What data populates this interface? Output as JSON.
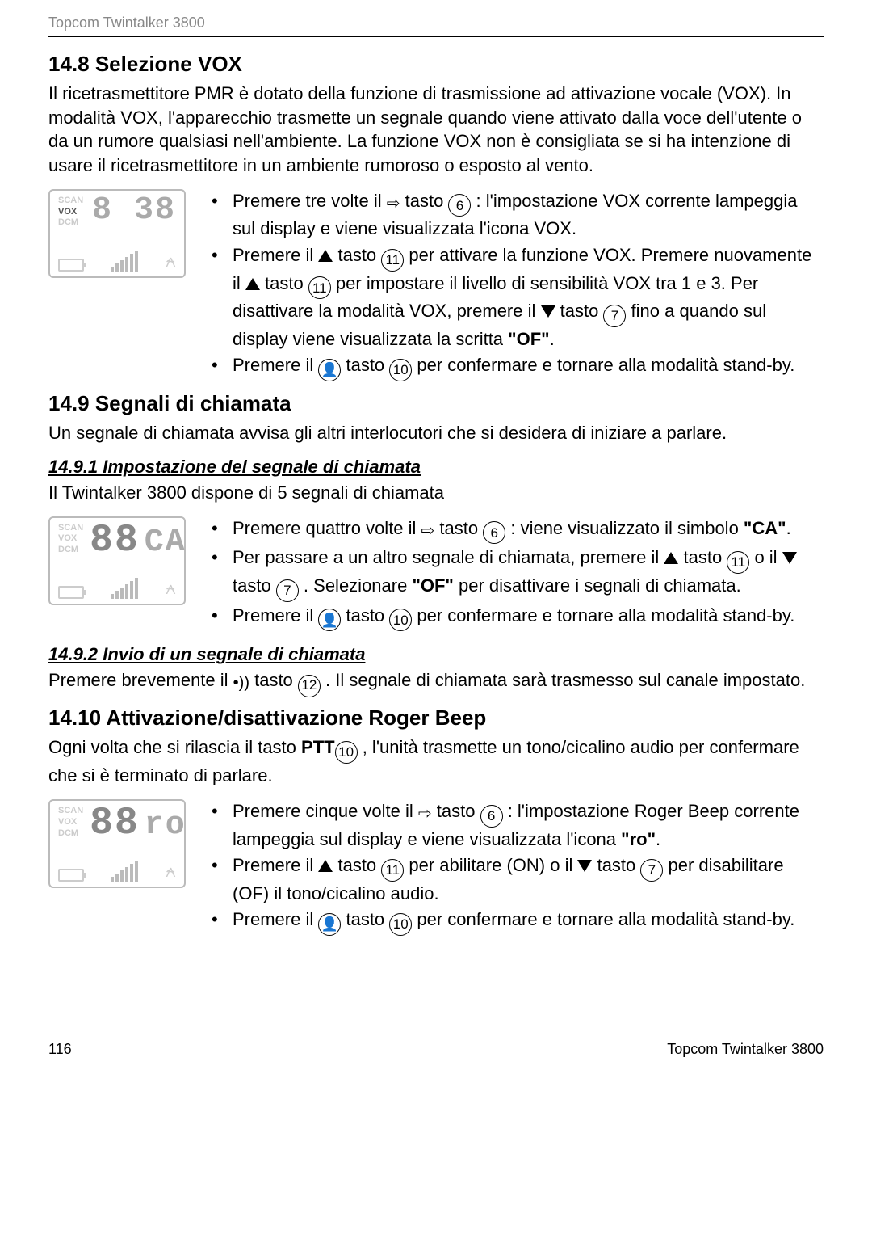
{
  "header": {
    "product": "Topcom Twintalker 3800"
  },
  "sections": {
    "vox": {
      "heading": "14.8   Selezione VOX",
      "intro": "Il ricetrasmettitore PMR è dotato della funzione di trasmissione ad attivazione vocale (VOX). In modalità VOX, l'apparecchio trasmette un segnale quando viene attivato dalla voce dell'utente o da un rumore qualsiasi nell'ambiente. La funzione VOX non è consigliata se si ha intenzione di usare il ricetrasmettitore in un ambiente rumoroso o esposto al vento.",
      "lcd": {
        "labels": [
          "SCAN",
          "VOX",
          "DCM"
        ],
        "active_label_index": 1,
        "digits_small": "8",
        "digits_right": "38"
      },
      "bullets": {
        "b1a": "Premere tre volte il ",
        "b1b": " tasto ",
        "b1c": " : l'impostazione VOX corrente lampeggia sul display e viene visualizzata l'icona VOX.",
        "b2a": "Premere il ",
        "b2b": " tasto  ",
        "b2c": " per attivare la funzione VOX. Premere nuovamente il ",
        "b2d": " tasto  ",
        "b2e": " per impostare il livello di sensibilità VOX tra 1 e 3. Per disattivare la modalità VOX, premere il ",
        "b2f": " tasto ",
        "b2g": " fino a quando sul display viene visualizzata la scritta ",
        "b2h": "\"OF\"",
        "b2i": ".",
        "b3a": "Premere il ",
        "b3b": " tasto ",
        "b3c": " per confermare e tornare alla modalità stand-by."
      }
    },
    "call": {
      "heading": "14.9   Segnali di chiamata",
      "intro": "Un segnale di chiamata avvisa gli altri interlocutori che si desidera di iniziare a parlare.",
      "sub1": {
        "heading": "14.9.1 Impostazione del segnale di chiamata",
        "intro": "Il Twintalker 3800 dispone di 5 segnali di chiamata",
        "lcd": {
          "labels": [
            "SCAN",
            "VOX",
            "DCM"
          ],
          "digits_big": "88",
          "digits_right": "CA"
        },
        "bullets": {
          "b1a": "Premere quattro volte il ",
          "b1b": " tasto ",
          "b1c": " : viene visualizzato il simbolo ",
          "b1d": "\"CA\"",
          "b1e": ".",
          "b2a": "Per passare a un altro segnale di chiamata, premere il ",
          "b2b": " tasto ",
          "b2c": "  o il ",
          "b2d": " tasto ",
          "b2e": " . Selezionare ",
          "b2f": "\"OF\"",
          "b2g": " per disattivare i segnali di chiamata.",
          "b3a": "Premere il ",
          "b3b": " tasto ",
          "b3c": " per confermare e tornare alla modalità stand-by."
        }
      },
      "sub2": {
        "heading": "14.9.2 Invio di un segnale di chiamata",
        "p_a": "Premere brevemente il ",
        "p_b": " tasto ",
        "p_c": "  . Il segnale di chiamata sarà trasmesso sul canale impostato."
      }
    },
    "roger": {
      "heading": "14.10 Attivazione/disattivazione Roger Beep",
      "intro_a": "Ogni volta che si rilascia il tasto ",
      "intro_ptt": "PTT",
      "intro_b": "  , l'unità trasmette un tono/cicalino audio per confermare che si è terminato di parlare.",
      "lcd": {
        "labels": [
          "SCAN",
          "VOX",
          "DCM"
        ],
        "digits_big": "88",
        "digits_right": "ro"
      },
      "bullets": {
        "b1a": "Premere cinque volte il ",
        "b1b": " tasto ",
        "b1c": " : l'impostazione Roger Beep corrente lampeggia sul display e viene visualizzata l'icona ",
        "b1d": "\"ro\"",
        "b1e": ".",
        "b2a": "Premere il ",
        "b2b": " tasto ",
        "b2c": " per abilitare (ON) o il ",
        "b2d": " tasto ",
        "b2e": " per disabilitare (OF) il tono/cicalino audio.",
        "b3a": "Premere il ",
        "b3b": " tasto ",
        "b3c": " per confermare e tornare alla modalità stand-by."
      }
    }
  },
  "refs": {
    "k6": "6",
    "k7": "7",
    "k10": "10",
    "k11": "11",
    "k12": "12"
  },
  "icons": {
    "menu": "⇨",
    "confirm": "👤",
    "call": "•))"
  },
  "footer": {
    "page": "116",
    "product": "Topcom Twintalker 3800"
  }
}
